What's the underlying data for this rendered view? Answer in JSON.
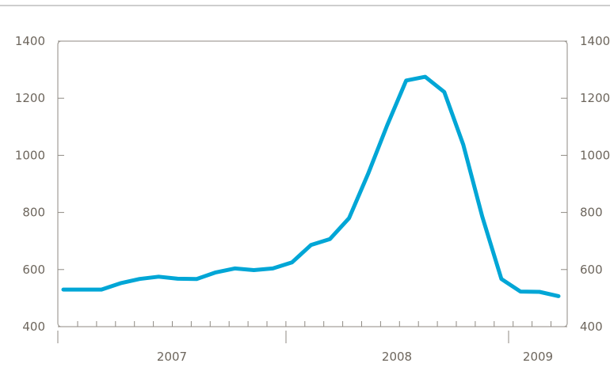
{
  "chart_data": {
    "type": "line",
    "xlabel": "",
    "ylabel": "",
    "ylim": [
      400,
      1400
    ],
    "y_ticks": [
      400,
      600,
      800,
      1000,
      1200,
      1400
    ],
    "y_tick_labels": [
      "400",
      "600",
      "800",
      "1000",
      "1200",
      "1400"
    ],
    "secondary_y_axis": true,
    "x_year_labels": [
      "2007",
      "2008",
      "2009"
    ],
    "x_ticks_months": 26,
    "grid": false,
    "legend": "none",
    "colors": {
      "line": "#00a6d6",
      "frame": "#8f8a83",
      "tick_label": "#6d665d",
      "top_rule": "#9c9c9c"
    },
    "series": [
      {
        "values": [
          530,
          530,
          530,
          552,
          567,
          575,
          568,
          567,
          590,
          604,
          598,
          604,
          625,
          686,
          707,
          780,
          935,
          1105,
          1262,
          1275,
          1222,
          1037,
          785,
          567,
          523,
          522,
          507
        ]
      }
    ]
  }
}
